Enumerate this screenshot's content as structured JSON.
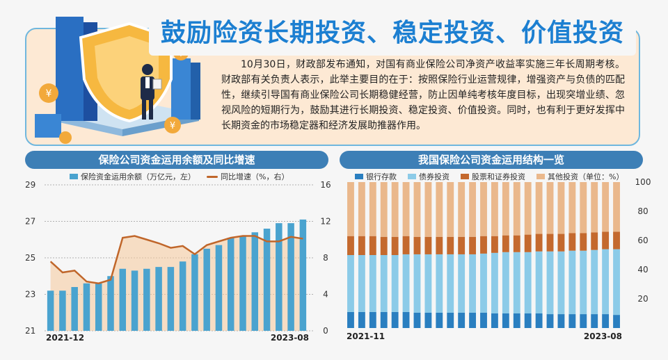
{
  "header": {
    "title": "鼓励险资长期投资、稳定投资、价值投资",
    "intro": "10月30日，财政部发布通知，对国有商业保险公司净资产收益率实施三年长周期考核。财政部有关负责人表示，此举主要目的在于：按照保险行业运营规律，增强资产与负债的匹配性，继续引导国有商业保险公司长期稳健经营，防止因单纯考核年度目标，出现突增业绩、忽视风险的短期行为，鼓励其进行长期投资、稳定投资、价值投资。同时，也有利于更好发挥中长期资金的市场稳定器和经济发展助推器作用。"
  },
  "chart_data": [
    {
      "type": "bar",
      "title": "保险公司资金运用余额及同比增速",
      "series": [
        {
          "name": "保险资金运用余额（万亿元，左）",
          "type": "bar",
          "axis": "left",
          "color": "#4aa3cf",
          "values": [
            23.2,
            23.2,
            23.4,
            23.6,
            23.6,
            24.0,
            24.4,
            24.3,
            24.4,
            24.5,
            24.5,
            24.8,
            25.2,
            25.5,
            25.7,
            26.1,
            26.2,
            26.4,
            26.6,
            26.9,
            26.9,
            27.1
          ]
        },
        {
          "name": "同比增速（%，右）",
          "type": "line",
          "axis": "right",
          "color": "#c0662a",
          "values": [
            7.6,
            6.4,
            6.6,
            5.4,
            5.2,
            5.6,
            10.2,
            10.4,
            10.0,
            9.6,
            9.1,
            9.3,
            8.4,
            9.4,
            9.8,
            10.2,
            10.4,
            10.4,
            9.8,
            9.8,
            10.3,
            10.1
          ]
        }
      ],
      "x_start_label": "2021-12",
      "x_end_label": "2023-08",
      "left_ticks": [
        "21",
        "23",
        "25",
        "27",
        "29"
      ],
      "right_ticks": [
        "0",
        "4",
        "8",
        "12",
        "16"
      ],
      "left_ylim": [
        21,
        29
      ],
      "right_ylim": [
        0,
        16
      ],
      "grid": true
    },
    {
      "type": "bar",
      "stacked": true,
      "title": "我国保险公司资金运用结构一览",
      "series": [
        {
          "name": "银行存款",
          "color": "#2a7fc0",
          "values": [
            11,
            11,
            11,
            11,
            11,
            11,
            10.5,
            10.5,
            10.5,
            10.5,
            10.5,
            10.5,
            10.5,
            10,
            10,
            10,
            10,
            10,
            9.5,
            9.5,
            9.5,
            9.5,
            9.5,
            9.5,
            9
          ]
        },
        {
          "name": "债券投资",
          "color": "#8ccbe8",
          "values": [
            39,
            39,
            39,
            39,
            39,
            39.5,
            40,
            40,
            40,
            40,
            40,
            40,
            40.5,
            41.5,
            42,
            42,
            42,
            42.5,
            43,
            43,
            43.5,
            43.5,
            44,
            44.5,
            45
          ]
        },
        {
          "name": "股票和证券投资",
          "color": "#c4692e",
          "values": [
            13,
            13,
            13,
            12.5,
            12.5,
            12.5,
            12,
            12,
            12,
            12,
            12,
            12,
            12,
            11.5,
            11.5,
            11.5,
            12,
            12,
            12,
            12,
            12,
            12,
            12,
            12,
            12
          ]
        },
        {
          "name": "其他投资（单位：%）",
          "color": "#eab88c",
          "values": [
            37,
            37,
            37,
            37.5,
            37.5,
            37,
            37.5,
            37.5,
            37.5,
            37.5,
            37.5,
            37.5,
            37,
            37,
            36.5,
            36.5,
            36,
            35.5,
            35.5,
            35.5,
            35,
            35,
            34.5,
            34,
            34
          ]
        }
      ],
      "x_start_label": "2021-11",
      "x_end_label": "2023-08",
      "right_ticks": [
        "20",
        "40",
        "60",
        "80",
        "100"
      ],
      "ylim": [
        0,
        100
      ]
    }
  ]
}
